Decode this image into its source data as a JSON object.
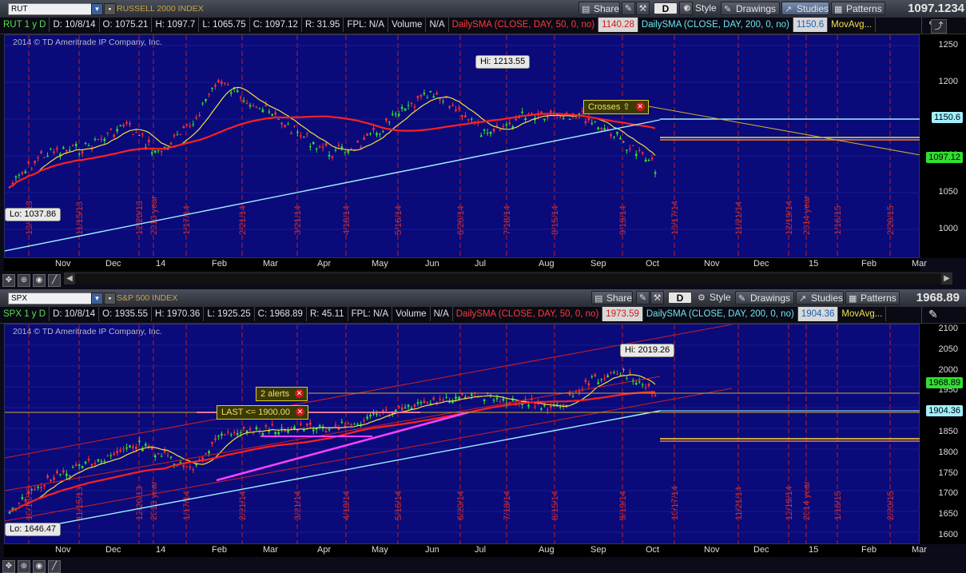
{
  "top": {
    "symbol": "RUT",
    "index_name": "RUSSELL 2000 INDEX",
    "last": "1097.1234",
    "toolbar": {
      "share": "Share",
      "timeframe": "D",
      "style": "Style",
      "drawings": "Drawings",
      "studies": "Studies",
      "patterns": "Patterns"
    },
    "info": {
      "title": "RUT 1 y D",
      "date": "D: 10/8/14",
      "open": "O: 1075.21",
      "high": "H: 1097.7",
      "low": "L: 1065.75",
      "close": "C: 1097.12",
      "range": "R: 31.95",
      "fpl": "FPL: N/A",
      "volume_label": "Volume",
      "volume_val": "N/A",
      "sma50": "DailySMA (CLOSE, DAY, 50, 0, no)",
      "sma50_val": "1140.28",
      "sma200": "DailySMA (CLOSE, DAY, 200, 0, no)",
      "sma200_val": "1150.6",
      "movavg": "MovAvg..."
    },
    "copyright": "2014 © TD Ameritrade IP Company, Inc.",
    "hi": "Hi: 1213.55",
    "lo": "Lo: 1037.86",
    "crosses": "Crosses",
    "tag_sma200": "1150.6",
    "tag_close": "1097.12",
    "y_ticks": [
      "1250",
      "1200",
      "1150",
      "1100",
      "1050",
      "1000"
    ],
    "x_ticks": [
      "Nov",
      "Dec",
      "14",
      "Feb",
      "Mar",
      "Apr",
      "May",
      "Jun",
      "Jul",
      "Aug",
      "Sep",
      "Oct",
      "Nov",
      "Dec",
      "15",
      "Feb",
      "Mar"
    ],
    "date_marks": [
      "10/18/13",
      "11/15/13",
      "12/20/13",
      "2013 year",
      "1/17/14",
      "2/21/14",
      "3/21/14",
      "4/18/14",
      "5/16/14",
      "6/20/14",
      "7/18/14",
      "8/15/14",
      "9/19/14",
      "10/17/14",
      "11/21/14",
      "12/19/14",
      "2014 year",
      "1/16/15",
      "2/20/15"
    ]
  },
  "bottom": {
    "symbol": "SPX",
    "index_name": "S&P 500 INDEX",
    "last": "1968.89",
    "toolbar": {
      "share": "Share",
      "timeframe": "D",
      "style": "Style",
      "drawings": "Drawings",
      "studies": "Studies",
      "patterns": "Patterns"
    },
    "info": {
      "title": "SPX 1 y D",
      "date": "D: 10/8/14",
      "open": "O: 1935.55",
      "high": "H: 1970.36",
      "low": "L: 1925.25",
      "close": "C: 1968.89",
      "range": "R: 45.11",
      "fpl": "FPL: N/A",
      "volume_label": "Volume",
      "volume_val": "N/A",
      "sma50": "DailySMA (CLOSE, DAY, 50, 0, no)",
      "sma50_val": "1973.59",
      "sma200": "DailySMA (CLOSE, DAY, 200, 0, no)",
      "sma200_val": "1904.36",
      "movavg": "MovAvg..."
    },
    "copyright": "2014 © TD Ameritrade IP Company, Inc.",
    "hi": "Hi: 2019.26",
    "lo": "Lo: 1646.47",
    "alerts": "2 alerts",
    "last_alert": "LAST <= 1900.00",
    "tag_close": "1968.89",
    "tag_sma200": "1904.36",
    "y_ticks": [
      "2100",
      "2050",
      "2000",
      "1950",
      "1900",
      "1850",
      "1800",
      "1750",
      "1700",
      "1650",
      "1600"
    ],
    "x_ticks": [
      "Nov",
      "Dec",
      "14",
      "Feb",
      "Mar",
      "Apr",
      "May",
      "Jun",
      "Jul",
      "Aug",
      "Sep",
      "Oct",
      "Nov",
      "Dec",
      "15",
      "Feb",
      "Mar"
    ],
    "date_marks": [
      "10/18/13",
      "11/15/13",
      "12/20/13",
      "2013 year",
      "1/17/14",
      "2/21/14",
      "3/21/14",
      "4/18/14",
      "5/16/14",
      "6/20/14",
      "7/18/14",
      "8/15/14",
      "9/19/14",
      "10/17/14",
      "11/21/14",
      "12/19/14",
      "2014 year",
      "1/16/15",
      "2/20/15"
    ]
  },
  "colors": {
    "plot_bg": "#0a0a7a",
    "sma50": "#ff2020",
    "sma200": "#a0f0ff",
    "short_ma": "#f0e040",
    "alert_line": "#ff40ff",
    "candle_up": "#30e030",
    "candle_down": "#ff3030"
  }
}
